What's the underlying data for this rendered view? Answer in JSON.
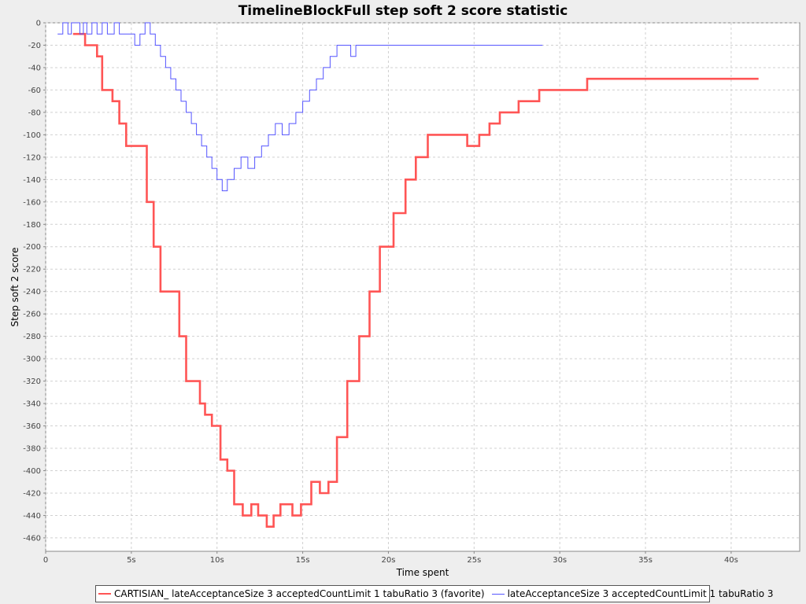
{
  "chart_data": {
    "type": "line",
    "step": true,
    "title": "TimelineBlockFull step soft 2 score statistic",
    "xlabel": "Time spent",
    "ylabel": "Step soft 2 score",
    "xlim": [
      0,
      44
    ],
    "ylim": [
      -472,
      0
    ],
    "xticks": [
      0,
      5,
      10,
      15,
      20,
      25,
      30,
      35,
      40
    ],
    "xtick_labels": [
      "0",
      "5s",
      "10s",
      "15s",
      "20s",
      "25s",
      "30s",
      "35s",
      "40s"
    ],
    "yticks": [
      0,
      -20,
      -40,
      -60,
      -80,
      -100,
      -120,
      -140,
      -160,
      -180,
      -200,
      -220,
      -240,
      -260,
      -280,
      -300,
      -320,
      -340,
      -360,
      -380,
      -400,
      -420,
      -440,
      -460
    ],
    "grid": true,
    "legend_position": "bottom",
    "series": [
      {
        "name": "CARTISIAN_ lateAcceptanceSize 3 acceptedCountLimit 1 tabuRatio 3 (favorite)",
        "color": "#ff5555",
        "x": [
          1.6,
          2.3,
          3.0,
          3.3,
          3.9,
          4.3,
          4.7,
          5.9,
          6.3,
          6.7,
          7.8,
          8.2,
          9.0,
          9.3,
          9.7,
          10.2,
          10.6,
          11.0,
          11.5,
          12.0,
          12.4,
          12.9,
          13.3,
          13.7,
          14.4,
          14.9,
          15.5,
          16.0,
          16.5,
          17.0,
          17.6,
          18.3,
          18.9,
          19.5,
          20.3,
          21.0,
          21.6,
          22.3,
          23.3,
          24.6,
          25.3,
          25.9,
          26.5,
          27.6,
          28.8,
          29.9,
          31.6,
          41.6
        ],
        "y": [
          -10,
          -20,
          -30,
          -60,
          -70,
          -90,
          -110,
          -160,
          -200,
          -240,
          -280,
          -320,
          -340,
          -350,
          -360,
          -390,
          -400,
          -430,
          -440,
          -430,
          -440,
          -450,
          -440,
          -430,
          -440,
          -430,
          -410,
          -420,
          -410,
          -370,
          -320,
          -280,
          -240,
          -200,
          -170,
          -140,
          -120,
          -100,
          -100,
          -110,
          -100,
          -90,
          -80,
          -70,
          -60,
          -60,
          -50,
          -50
        ]
      },
      {
        "name": "lateAcceptanceSize 3 acceptedCountLimit 1 tabuRatio 3",
        "color": "#5555ff",
        "x": [
          0.7,
          1.0,
          1.3,
          1.5,
          2.0,
          2.2,
          2.4,
          2.7,
          3.0,
          3.3,
          3.6,
          4.0,
          4.3,
          5.2,
          5.5,
          5.8,
          6.1,
          6.4,
          6.7,
          7.0,
          7.3,
          7.6,
          7.9,
          8.2,
          8.5,
          8.8,
          9.1,
          9.4,
          9.7,
          10.0,
          10.3,
          10.6,
          11.0,
          11.4,
          11.8,
          12.2,
          12.6,
          13.0,
          13.4,
          13.8,
          14.2,
          14.6,
          15.0,
          15.4,
          15.8,
          16.2,
          16.6,
          17.0,
          17.4,
          17.8,
          18.1,
          18.4,
          18.7,
          19.1,
          29.0
        ],
        "y": [
          -10,
          0,
          -10,
          0,
          -10,
          0,
          -10,
          0,
          -10,
          0,
          -10,
          0,
          -10,
          -20,
          -10,
          0,
          -10,
          -20,
          -30,
          -40,
          -50,
          -60,
          -70,
          -80,
          -90,
          -100,
          -110,
          -120,
          -130,
          -140,
          -150,
          -140,
          -130,
          -120,
          -130,
          -120,
          -110,
          -100,
          -90,
          -100,
          -90,
          -80,
          -70,
          -60,
          -50,
          -40,
          -30,
          -20,
          -20,
          -30,
          -20,
          -20,
          -20,
          -20,
          -20
        ]
      }
    ]
  }
}
